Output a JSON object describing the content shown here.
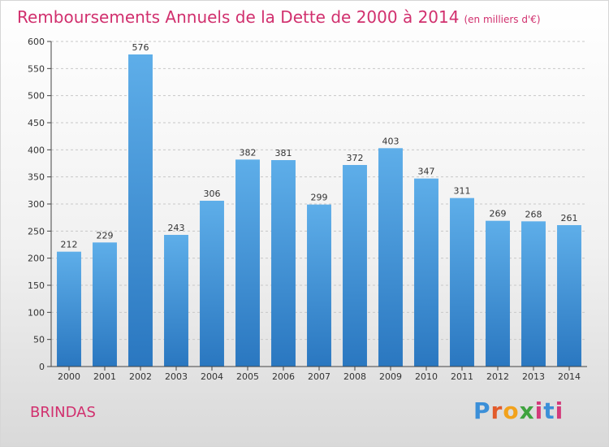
{
  "chart_data": {
    "type": "bar",
    "title": "Remboursements Annuels de la Dette de 2000 à 2014",
    "subtitle": "(en milliers d'€)",
    "categories": [
      "2000",
      "2001",
      "2002",
      "2003",
      "2004",
      "2005",
      "2006",
      "2007",
      "2008",
      "2009",
      "2010",
      "2011",
      "2012",
      "2013",
      "2014"
    ],
    "values": [
      212,
      229,
      576,
      243,
      306,
      382,
      381,
      299,
      372,
      403,
      347,
      311,
      269,
      268,
      261
    ],
    "ylim": [
      0,
      600
    ],
    "yticks": [
      0,
      50,
      100,
      150,
      200,
      250,
      300,
      350,
      400,
      450,
      500,
      550,
      600
    ],
    "grid": true,
    "bar_color": "#3d8ed6"
  },
  "footer": {
    "city": "BRINDAS",
    "logo": "Proxiti"
  }
}
